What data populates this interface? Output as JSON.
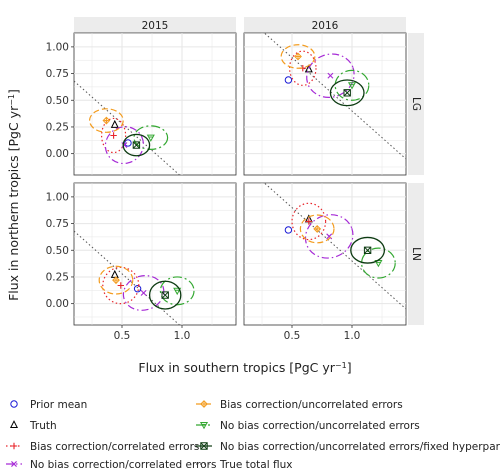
{
  "chart_data": {
    "type": "scatter",
    "title": "",
    "xlabel": "Flux in southern tropics [PgC yr",
    "ylabel": "Flux in northern tropics [PgC yr",
    "unit_exponent": "−1",
    "unit_close": "]",
    "columns": [
      "2015",
      "2016"
    ],
    "rows": [
      "LG",
      "LN"
    ],
    "xlim": [
      0.1,
      1.45
    ],
    "ylim": [
      -0.2,
      1.13
    ],
    "xticks": [
      0.5,
      1.0
    ],
    "xtick_labels": [
      "0.5",
      "1.0"
    ],
    "yticks": [
      0.0,
      0.25,
      0.5,
      0.75,
      1.0
    ],
    "ytick_labels": [
      "0.00",
      "0.25",
      "0.50",
      "0.75",
      "1.00"
    ],
    "grid": true,
    "legend_position": "bottom",
    "colors": {
      "prior": "#1a1ad6",
      "truth": "#000000",
      "bias_correlated": "#e8242a",
      "bias_uncorrelated": "#f39c1f",
      "nobias_correlated": "#a62bd6",
      "nobias_uncorrelated": "#34a832",
      "nobias_fixed": "#0d3b12",
      "true_total": "#555555",
      "panel_strip": "#ececec",
      "grid": "#e6e6e6"
    },
    "series": [
      {
        "key": "prior",
        "name": "Prior mean",
        "marker": "circle"
      },
      {
        "key": "truth",
        "name": "Truth",
        "marker": "triangle"
      },
      {
        "key": "bias_correlated",
        "name": "Bias correction/correlated errors",
        "marker": "plus",
        "ellipse": "dotted"
      },
      {
        "key": "nobias_correlated",
        "name": "No bias correction/correlated errors",
        "marker": "cross",
        "ellipse": "dashdot"
      },
      {
        "key": "bias_uncorrelated",
        "name": "Bias correction/uncorrelated errors",
        "marker": "diamond",
        "ellipse": "dashed"
      },
      {
        "key": "nobias_uncorrelated",
        "name": "No bias correction/uncorrelated errors",
        "marker": "down-triangle",
        "ellipse": "longdash"
      },
      {
        "key": "nobias_fixed",
        "name": "No bias correction/uncorrelated errors/fixed hyperparameters",
        "marker": "box",
        "ellipse": "solid"
      },
      {
        "key": "true_total",
        "name": "True total flux",
        "marker": "line"
      }
    ],
    "panels": [
      {
        "col": "2015",
        "row": "LG",
        "true_total_sum": 0.78,
        "points": {
          "prior": [
            0.55,
            0.1
          ],
          "truth": [
            0.44,
            0.27
          ],
          "bias_correlated": [
            0.43,
            0.17,
            0.1,
            0.16,
            0
          ],
          "nobias_correlated": [
            0.52,
            0.08,
            0.16,
            0.17,
            -25
          ],
          "bias_uncorrelated": [
            0.37,
            0.31,
            0.14,
            0.11,
            0
          ],
          "nobias_uncorrelated": [
            0.74,
            0.15,
            0.14,
            0.11,
            0
          ],
          "nobias_fixed": [
            0.62,
            0.08,
            0.11,
            0.1,
            0
          ]
        }
      },
      {
        "col": "2016",
        "row": "LG",
        "true_total_sum": 1.4,
        "points": {
          "prior": [
            0.47,
            0.69
          ],
          "truth": [
            0.64,
            0.79
          ],
          "bias_correlated": [
            0.59,
            0.8,
            0.11,
            0.16,
            0
          ],
          "nobias_correlated": [
            0.82,
            0.73,
            0.2,
            0.2,
            -20
          ],
          "bias_uncorrelated": [
            0.55,
            0.91,
            0.14,
            0.11,
            0
          ],
          "nobias_uncorrelated": [
            1.0,
            0.64,
            0.14,
            0.14,
            0
          ],
          "nobias_fixed": [
            0.96,
            0.57,
            0.14,
            0.12,
            0
          ]
        }
      },
      {
        "col": "2015",
        "row": "LN",
        "true_total_sum": 0.78,
        "points": {
          "prior": [
            0.63,
            0.14
          ],
          "truth": [
            0.44,
            0.27
          ],
          "bias_correlated": [
            0.49,
            0.17,
            0.15,
            0.17,
            0
          ],
          "nobias_correlated": [
            0.68,
            0.1,
            0.17,
            0.16,
            -15
          ],
          "bias_uncorrelated": [
            0.45,
            0.22,
            0.14,
            0.13,
            0
          ],
          "nobias_uncorrelated": [
            0.96,
            0.12,
            0.14,
            0.13,
            0
          ],
          "nobias_fixed": [
            0.86,
            0.08,
            0.13,
            0.13,
            0
          ]
        }
      },
      {
        "col": "2016",
        "row": "LN",
        "true_total_sum": 1.4,
        "points": {
          "prior": [
            0.47,
            0.69
          ],
          "truth": [
            0.64,
            0.79
          ],
          "bias_correlated": [
            0.64,
            0.77,
            0.14,
            0.17,
            0
          ],
          "nobias_correlated": [
            0.81,
            0.63,
            0.2,
            0.2,
            -20
          ],
          "bias_uncorrelated": [
            0.71,
            0.7,
            0.14,
            0.13,
            0
          ],
          "nobias_uncorrelated": [
            1.22,
            0.38,
            0.14,
            0.14,
            0
          ],
          "nobias_fixed": [
            1.13,
            0.5,
            0.14,
            0.12,
            0
          ]
        }
      }
    ]
  }
}
